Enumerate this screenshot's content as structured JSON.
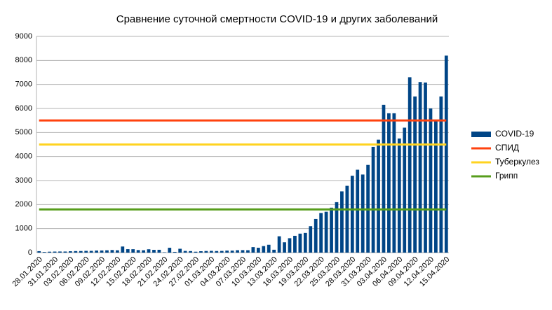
{
  "chart_data": {
    "type": "bar",
    "title": "Сравнение суточной смертности COVID-19 и других заболеваний",
    "categories": [
      "28.01.2020",
      null,
      null,
      "31.01.2020",
      null,
      null,
      "03.02.2020",
      null,
      null,
      "06.02.2020",
      null,
      null,
      "09.02.2020",
      null,
      null,
      "12.02.2020",
      null,
      null,
      "15.02.2020",
      null,
      null,
      "18.02.2020",
      null,
      null,
      "21.02.2020",
      null,
      null,
      "24.02.2020",
      null,
      null,
      "27.02.2020",
      null,
      null,
      "01.03.2020",
      null,
      null,
      "04.03.2020",
      null,
      null,
      "07.03.2020",
      null,
      null,
      "10.03.2020",
      null,
      null,
      "13.03.2020",
      null,
      null,
      "16.03.2020",
      null,
      null,
      "19.03.2020",
      null,
      null,
      "22.03.2020",
      null,
      null,
      "25.03.2020",
      null,
      null,
      "28.03.2020",
      null,
      null,
      "31.03.2020",
      null,
      null,
      "03.04.2020",
      null,
      null,
      "06.04.2020",
      null,
      null,
      "09.04.2020",
      null,
      null,
      "12.04.2020",
      null,
      null,
      "15.04.2020"
    ],
    "series": [
      {
        "name": "COVID-19",
        "type": "bar",
        "color": "#004586",
        "values": [
          60,
          26,
          38,
          43,
          46,
          45,
          57,
          64,
          66,
          73,
          73,
          86,
          89,
          97,
          108,
          97,
          254,
          143,
          142,
          106,
          98,
          139,
          115,
          118,
          15,
          202,
          30,
          160,
          71,
          64,
          37,
          58,
          67,
          73,
          66,
          70,
          84,
          83,
          100,
          103,
          100,
          229,
          202,
          272,
          327,
          120,
          680,
          430,
          600,
          700,
          790,
          820,
          1100,
          1400,
          1650,
          1700,
          1870,
          2100,
          2550,
          2780,
          3200,
          3450,
          3250,
          3650,
          4400,
          4700,
          6150,
          5800,
          5800,
          4750,
          5200,
          7300,
          6500,
          7100,
          7080,
          6000,
          5500,
          6500,
          8200
        ]
      },
      {
        "name": "СПИД",
        "type": "line",
        "color": "#ff420e",
        "values": [
          5500,
          5500,
          5500,
          5500,
          5500,
          5500,
          5500,
          5500,
          5500,
          5500,
          5500,
          5500,
          5500,
          5500,
          5500,
          5500,
          5500,
          5500,
          5500,
          5500,
          5500,
          5500,
          5500,
          5500,
          5500,
          5500,
          5500,
          5500,
          5500,
          5500,
          5500,
          5500,
          5500,
          5500,
          5500,
          5500,
          5500,
          5500,
          5500,
          5500,
          5500,
          5500,
          5500,
          5500,
          5500,
          5500,
          5500,
          5500,
          5500,
          5500,
          5500,
          5500,
          5500,
          5500,
          5500,
          5500,
          5500,
          5500,
          5500,
          5500,
          5500,
          5500,
          5500,
          5500,
          5500,
          5500,
          5500,
          5500,
          5500,
          5500,
          5500,
          5500,
          5500,
          5500,
          5500,
          5500,
          5500,
          5500,
          5500
        ]
      },
      {
        "name": "Туберкулез",
        "type": "line",
        "color": "#ffd320",
        "values": [
          4500,
          4500,
          4500,
          4500,
          4500,
          4500,
          4500,
          4500,
          4500,
          4500,
          4500,
          4500,
          4500,
          4500,
          4500,
          4500,
          4500,
          4500,
          4500,
          4500,
          4500,
          4500,
          4500,
          4500,
          4500,
          4500,
          4500,
          4500,
          4500,
          4500,
          4500,
          4500,
          4500,
          4500,
          4500,
          4500,
          4500,
          4500,
          4500,
          4500,
          4500,
          4500,
          4500,
          4500,
          4500,
          4500,
          4500,
          4500,
          4500,
          4500,
          4500,
          4500,
          4500,
          4500,
          4500,
          4500,
          4500,
          4500,
          4500,
          4500,
          4500,
          4500,
          4500,
          4500,
          4500,
          4500,
          4500,
          4500,
          4500,
          4500,
          4500,
          4500,
          4500,
          4500,
          4500,
          4500,
          4500,
          4500,
          4500
        ]
      },
      {
        "name": "Грипп",
        "type": "line",
        "color": "#579d1c",
        "values": [
          1800,
          1800,
          1800,
          1800,
          1800,
          1800,
          1800,
          1800,
          1800,
          1800,
          1800,
          1800,
          1800,
          1800,
          1800,
          1800,
          1800,
          1800,
          1800,
          1800,
          1800,
          1800,
          1800,
          1800,
          1800,
          1800,
          1800,
          1800,
          1800,
          1800,
          1800,
          1800,
          1800,
          1800,
          1800,
          1800,
          1800,
          1800,
          1800,
          1800,
          1800,
          1800,
          1800,
          1800,
          1800,
          1800,
          1800,
          1800,
          1800,
          1800,
          1800,
          1800,
          1800,
          1800,
          1800,
          1800,
          1800,
          1800,
          1800,
          1800,
          1800,
          1800,
          1800,
          1800,
          1800,
          1800,
          1800,
          1800,
          1800,
          1800,
          1800,
          1800,
          1800,
          1800,
          1800,
          1800,
          1800,
          1800,
          1800
        ]
      }
    ],
    "ylim": [
      0,
      9000
    ],
    "yticks": [
      0,
      1000,
      2000,
      3000,
      4000,
      5000,
      6000,
      7000,
      8000,
      9000
    ],
    "grid": true,
    "legend": "right"
  }
}
